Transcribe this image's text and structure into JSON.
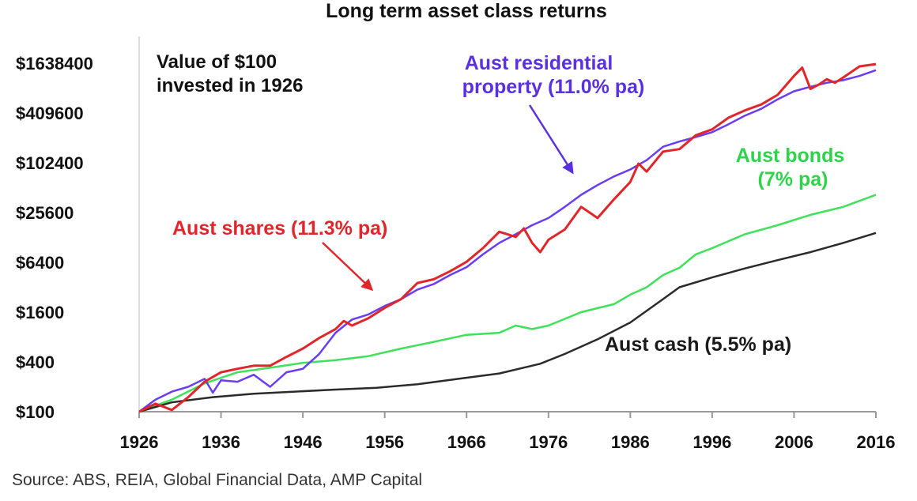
{
  "chart_data": {
    "type": "line",
    "title": "Long term asset class returns",
    "annotation_lines": [
      "Value of $100",
      "invested in 1926"
    ],
    "source": "Source: ABS, REIA, Global Financial Data, AMP Capital",
    "x_ticks": [
      "1926",
      "1936",
      "1946",
      "1956",
      "1966",
      "1976",
      "1986",
      "1996",
      "2006",
      "2016"
    ],
    "y_ticks": [
      {
        "value": 100,
        "label": "$100"
      },
      {
        "value": 400,
        "label": "$400"
      },
      {
        "value": 1600,
        "label": "$1600"
      },
      {
        "value": 6400,
        "label": "$6400"
      },
      {
        "value": 25600,
        "label": "$25600"
      },
      {
        "value": 102400,
        "label": "$102400"
      },
      {
        "value": 409600,
        "label": "$409600"
      },
      {
        "value": 1638400,
        "label": "$1638400"
      }
    ],
    "xlim": [
      1926,
      2016
    ],
    "ylim": [
      100,
      2000000
    ],
    "y_scale": "log",
    "grid": false,
    "series": [
      {
        "name": "Aust shares (11.3% pa)",
        "label_lines": [
          "Aust shares (11.3% pa)"
        ],
        "color": "#e0262b",
        "points": [
          [
            1926,
            100
          ],
          [
            1928,
            125
          ],
          [
            1930,
            105
          ],
          [
            1932,
            150
          ],
          [
            1934,
            230
          ],
          [
            1936,
            300
          ],
          [
            1938,
            330
          ],
          [
            1940,
            360
          ],
          [
            1942,
            360
          ],
          [
            1944,
            460
          ],
          [
            1946,
            580
          ],
          [
            1948,
            780
          ],
          [
            1950,
            1000
          ],
          [
            1951,
            1250
          ],
          [
            1952,
            1100
          ],
          [
            1954,
            1350
          ],
          [
            1956,
            1800
          ],
          [
            1958,
            2300
          ],
          [
            1960,
            3600
          ],
          [
            1962,
            4000
          ],
          [
            1964,
            5000
          ],
          [
            1966,
            6500
          ],
          [
            1968,
            9500
          ],
          [
            1970,
            15000
          ],
          [
            1972,
            13000
          ],
          [
            1973,
            16500
          ],
          [
            1974,
            11000
          ],
          [
            1975,
            8500
          ],
          [
            1976,
            12000
          ],
          [
            1978,
            16000
          ],
          [
            1980,
            30000
          ],
          [
            1982,
            22000
          ],
          [
            1984,
            37000
          ],
          [
            1986,
            60000
          ],
          [
            1987,
            100000
          ],
          [
            1988,
            80000
          ],
          [
            1990,
            140000
          ],
          [
            1992,
            150000
          ],
          [
            1994,
            220000
          ],
          [
            1996,
            260000
          ],
          [
            1998,
            360000
          ],
          [
            2000,
            440000
          ],
          [
            2002,
            520000
          ],
          [
            2004,
            680000
          ],
          [
            2006,
            1150000
          ],
          [
            2007,
            1450000
          ],
          [
            2008,
            800000
          ],
          [
            2009,
            900000
          ],
          [
            2010,
            1050000
          ],
          [
            2011,
            950000
          ],
          [
            2012,
            1100000
          ],
          [
            2014,
            1500000
          ],
          [
            2016,
            1600000
          ]
        ]
      },
      {
        "name": "Aust residential property (11.0% pa)",
        "label_lines": [
          "Aust residential",
          "property (11.0% pa)"
        ],
        "color": "#6a3df0",
        "points": [
          [
            1926,
            100
          ],
          [
            1928,
            140
          ],
          [
            1930,
            175
          ],
          [
            1932,
            200
          ],
          [
            1934,
            250
          ],
          [
            1935,
            170
          ],
          [
            1936,
            240
          ],
          [
            1938,
            230
          ],
          [
            1940,
            280
          ],
          [
            1942,
            200
          ],
          [
            1944,
            300
          ],
          [
            1946,
            330
          ],
          [
            1948,
            500
          ],
          [
            1950,
            900
          ],
          [
            1952,
            1300
          ],
          [
            1954,
            1500
          ],
          [
            1956,
            1900
          ],
          [
            1958,
            2300
          ],
          [
            1960,
            3000
          ],
          [
            1962,
            3500
          ],
          [
            1964,
            4500
          ],
          [
            1966,
            5600
          ],
          [
            1968,
            8000
          ],
          [
            1970,
            11000
          ],
          [
            1972,
            14000
          ],
          [
            1974,
            18000
          ],
          [
            1976,
            22000
          ],
          [
            1978,
            30000
          ],
          [
            1980,
            42000
          ],
          [
            1982,
            55000
          ],
          [
            1984,
            70000
          ],
          [
            1986,
            85000
          ],
          [
            1988,
            110000
          ],
          [
            1990,
            160000
          ],
          [
            1992,
            185000
          ],
          [
            1994,
            210000
          ],
          [
            1996,
            240000
          ],
          [
            1998,
            300000
          ],
          [
            2000,
            380000
          ],
          [
            2002,
            460000
          ],
          [
            2004,
            600000
          ],
          [
            2006,
            750000
          ],
          [
            2008,
            850000
          ],
          [
            2010,
            950000
          ],
          [
            2012,
            1020000
          ],
          [
            2014,
            1150000
          ],
          [
            2016,
            1350000
          ]
        ]
      },
      {
        "name": "Aust bonds (7% pa)",
        "label_lines": [
          "Aust bonds",
          "(7% pa)"
        ],
        "color": "#3fe05a",
        "points": [
          [
            1926,
            100
          ],
          [
            1930,
            140
          ],
          [
            1934,
            220
          ],
          [
            1938,
            300
          ],
          [
            1942,
            340
          ],
          [
            1946,
            390
          ],
          [
            1950,
            420
          ],
          [
            1954,
            470
          ],
          [
            1958,
            580
          ],
          [
            1962,
            700
          ],
          [
            1966,
            850
          ],
          [
            1970,
            900
          ],
          [
            1972,
            1100
          ],
          [
            1974,
            1000
          ],
          [
            1976,
            1100
          ],
          [
            1980,
            1600
          ],
          [
            1984,
            2000
          ],
          [
            1986,
            2600
          ],
          [
            1988,
            3200
          ],
          [
            1990,
            4500
          ],
          [
            1992,
            5500
          ],
          [
            1994,
            8000
          ],
          [
            1996,
            9500
          ],
          [
            2000,
            14000
          ],
          [
            2004,
            18000
          ],
          [
            2008,
            24000
          ],
          [
            2012,
            30000
          ],
          [
            2016,
            42000
          ]
        ]
      },
      {
        "name": "Aust cash (5.5% pa)",
        "label_lines": [
          "Aust cash (5.5% pa)"
        ],
        "color": "#2b2b2b",
        "points": [
          [
            1926,
            100
          ],
          [
            1930,
            130
          ],
          [
            1935,
            150
          ],
          [
            1940,
            165
          ],
          [
            1945,
            175
          ],
          [
            1950,
            185
          ],
          [
            1955,
            195
          ],
          [
            1960,
            215
          ],
          [
            1965,
            250
          ],
          [
            1970,
            290
          ],
          [
            1975,
            380
          ],
          [
            1978,
            500
          ],
          [
            1982,
            750
          ],
          [
            1986,
            1200
          ],
          [
            1990,
            2300
          ],
          [
            1992,
            3200
          ],
          [
            1996,
            4200
          ],
          [
            2000,
            5400
          ],
          [
            2004,
            6800
          ],
          [
            2008,
            8500
          ],
          [
            2012,
            11000
          ],
          [
            2016,
            14500
          ]
        ]
      }
    ]
  }
}
